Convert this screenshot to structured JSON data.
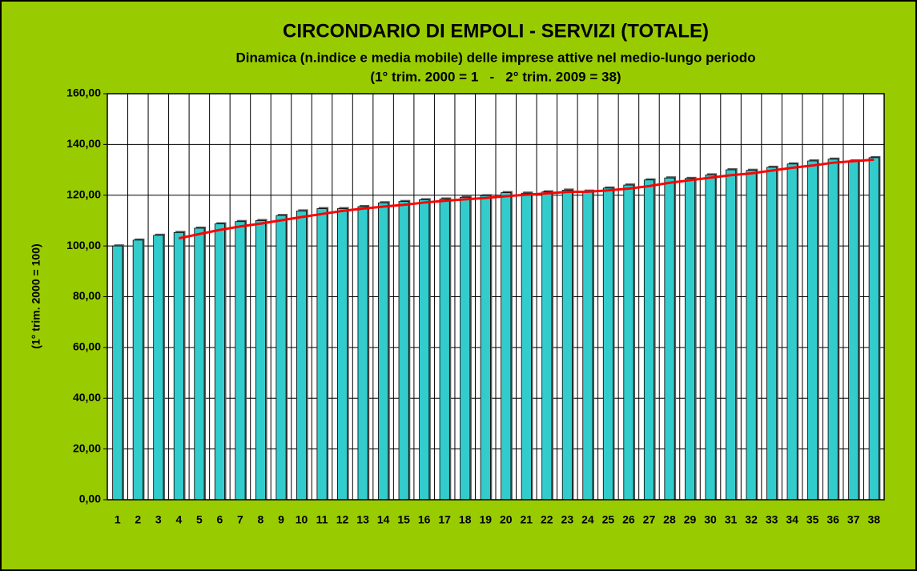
{
  "chart_data": {
    "type": "bar",
    "title": "CIRCONDARIO DI EMPOLI - SERVIZI (TOTALE)",
    "subtitle": [
      "Dinamica (n.indice e media mobile) delle imprese attive nel medio-lungo periodo",
      "(1° trim. 2000 = 1   -   2° trim. 2009 = 38)"
    ],
    "y_label": "(1° trim. 2000 = 100)",
    "categories": [
      "1",
      "2",
      "3",
      "4",
      "5",
      "6",
      "7",
      "8",
      "9",
      "10",
      "11",
      "12",
      "13",
      "14",
      "15",
      "16",
      "17",
      "18",
      "19",
      "20",
      "21",
      "22",
      "23",
      "24",
      "25",
      "26",
      "27",
      "28",
      "29",
      "30",
      "31",
      "32",
      "33",
      "34",
      "35",
      "36",
      "37",
      "38"
    ],
    "series": [
      {
        "type": "bar",
        "color": "#33cccc",
        "values": [
          100,
          102.3,
          104.2,
          105.3,
          107,
          108.7,
          109.6,
          110,
          112,
          113.8,
          114.7,
          114.7,
          115.5,
          117,
          117.5,
          118.2,
          118.5,
          119.2,
          119.8,
          121,
          120.8,
          121.3,
          122,
          121.6,
          122.8,
          124,
          126,
          126.8,
          126.6,
          128,
          130,
          129.8,
          131,
          132.3,
          133.5,
          134.2,
          133.5,
          134.8
        ]
      },
      {
        "type": "line",
        "color": "#ff0000",
        "values": [
          null,
          null,
          null,
          103,
          104.7,
          106.3,
          107.7,
          108.8,
          110.1,
          111.4,
          112.6,
          113.8,
          114.7,
          115.5,
          116.2,
          117.1,
          117.8,
          118.4,
          118.9,
          119.6,
          120.2,
          120.7,
          121.3,
          121.4,
          121.9,
          122.6,
          123.6,
          124.9,
          125.9,
          126.9,
          127.9,
          128.6,
          129.7,
          130.8,
          131.7,
          132.8,
          133.4,
          134
        ]
      }
    ],
    "ylim": [
      0,
      160
    ],
    "yticks": [
      {
        "value": 0,
        "label": "0,00"
      },
      {
        "value": 20,
        "label": "20,00"
      },
      {
        "value": 40,
        "label": "40,00"
      },
      {
        "value": 60,
        "label": "60,00"
      },
      {
        "value": 80,
        "label": "80,00"
      },
      {
        "value": 100,
        "label": "100,00"
      },
      {
        "value": 120,
        "label": "120,00"
      },
      {
        "value": 140,
        "label": "140,00"
      },
      {
        "value": 160,
        "label": "160,00"
      }
    ],
    "grid": true
  }
}
